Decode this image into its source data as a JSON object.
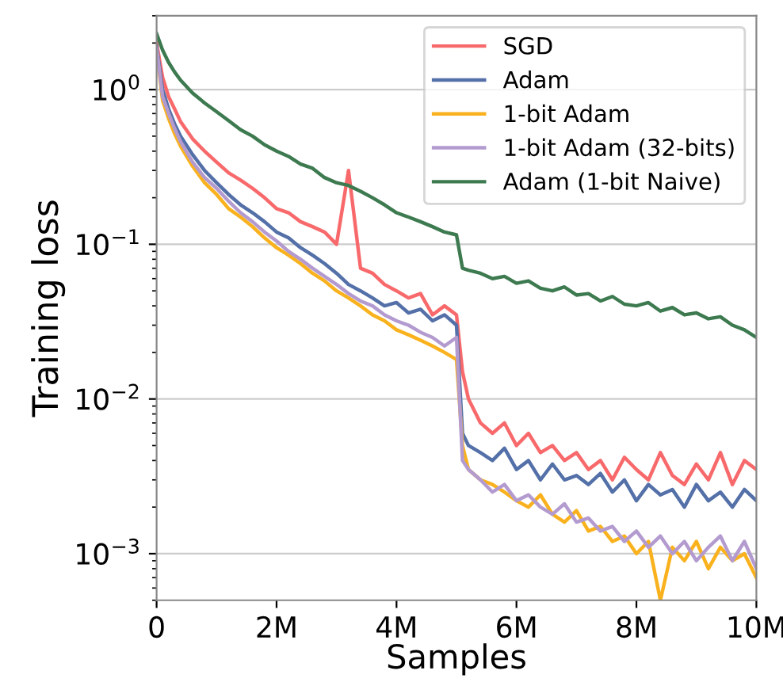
{
  "chart_data": {
    "type": "line",
    "xlabel": "Samples",
    "ylabel": "Training loss",
    "log": "y",
    "grid": "y",
    "legend": "top right",
    "marker": "none",
    "line_style": "solid",
    "x": [
      0,
      0.1,
      0.2,
      0.3,
      0.4,
      0.6,
      0.8,
      1.0,
      1.2,
      1.4,
      1.6,
      1.8,
      2.0,
      2.2,
      2.4,
      2.6,
      2.8,
      3.0,
      3.2,
      3.4,
      3.6,
      3.8,
      4.0,
      4.2,
      4.4,
      4.6,
      4.8,
      5.0,
      5.1,
      5.2,
      5.4,
      5.6,
      5.8,
      6.0,
      6.2,
      6.4,
      6.6,
      6.8,
      7.0,
      7.2,
      7.4,
      7.6,
      7.8,
      8.0,
      8.2,
      8.4,
      8.6,
      8.8,
      9.0,
      9.2,
      9.4,
      9.6,
      9.8,
      10.0
    ],
    "xlim": [
      0,
      10
    ],
    "xticks": [
      0,
      {
        "value": 2,
        "label": "2M"
      },
      {
        "value": 4,
        "label": "4M"
      },
      {
        "value": 6,
        "label": "6M"
      },
      {
        "value": 8,
        "label": "8M"
      },
      {
        "value": 10,
        "label": "10M"
      }
    ],
    "ylim": [
      0.0005,
      3
    ],
    "yticks": [
      {
        "value": 0.001,
        "label": "10$^{−3}$"
      },
      {
        "value": 0.01,
        "label": "10$^{−2}$"
      },
      {
        "value": 0.1,
        "label": "10$^{−1}$"
      },
      {
        "value": 1,
        "label": "10$^{0}$"
      }
    ],
    "series": [
      {
        "name": "SGD",
        "color": "#f8696b",
        "values": [
          2.0,
          1.2,
          0.9,
          0.75,
          0.62,
          0.48,
          0.4,
          0.34,
          0.29,
          0.26,
          0.23,
          0.2,
          0.17,
          0.16,
          0.14,
          0.13,
          0.12,
          0.1,
          0.3,
          0.07,
          0.065,
          0.055,
          0.05,
          0.045,
          0.048,
          0.035,
          0.04,
          0.035,
          0.015,
          0.01,
          0.007,
          0.006,
          0.007,
          0.005,
          0.006,
          0.0045,
          0.005,
          0.004,
          0.0045,
          0.0035,
          0.004,
          0.003,
          0.0042,
          0.0035,
          0.003,
          0.0045,
          0.0032,
          0.0028,
          0.0038,
          0.003,
          0.0045,
          0.0028,
          0.004,
          0.0035
        ]
      },
      {
        "name": "Adam",
        "color": "#5470a8",
        "values": [
          1.9,
          1.0,
          0.75,
          0.6,
          0.5,
          0.38,
          0.3,
          0.25,
          0.21,
          0.18,
          0.16,
          0.14,
          0.12,
          0.11,
          0.095,
          0.085,
          0.075,
          0.065,
          0.055,
          0.05,
          0.045,
          0.04,
          0.042,
          0.036,
          0.038,
          0.032,
          0.035,
          0.03,
          0.006,
          0.005,
          0.0045,
          0.004,
          0.0048,
          0.0035,
          0.004,
          0.003,
          0.0038,
          0.003,
          0.0032,
          0.0028,
          0.0033,
          0.0025,
          0.003,
          0.0022,
          0.0028,
          0.0024,
          0.0026,
          0.002,
          0.0028,
          0.0022,
          0.0025,
          0.002,
          0.0026,
          0.0022
        ]
      },
      {
        "name": "1-bit Adam",
        "color": "#f9b21e",
        "values": [
          1.8,
          0.85,
          0.65,
          0.52,
          0.43,
          0.32,
          0.25,
          0.21,
          0.17,
          0.15,
          0.13,
          0.11,
          0.095,
          0.085,
          0.075,
          0.065,
          0.058,
          0.05,
          0.045,
          0.04,
          0.035,
          0.032,
          0.028,
          0.026,
          0.024,
          0.022,
          0.02,
          0.018,
          0.005,
          0.0035,
          0.003,
          0.0028,
          0.0025,
          0.0022,
          0.002,
          0.0024,
          0.0018,
          0.0016,
          0.0019,
          0.0014,
          0.0015,
          0.0012,
          0.0013,
          0.001,
          0.0012,
          0.0005,
          0.0011,
          0.0009,
          0.0012,
          0.0008,
          0.0011,
          0.0009,
          0.001,
          0.0007
        ]
      },
      {
        "name": "1-bit Adam (32-bits)",
        "color": "#b39bd0",
        "values": [
          1.85,
          0.9,
          0.7,
          0.56,
          0.46,
          0.34,
          0.27,
          0.23,
          0.19,
          0.16,
          0.14,
          0.12,
          0.105,
          0.09,
          0.08,
          0.07,
          0.062,
          0.055,
          0.048,
          0.043,
          0.04,
          0.035,
          0.032,
          0.03,
          0.027,
          0.025,
          0.022,
          0.025,
          0.004,
          0.0035,
          0.003,
          0.0025,
          0.0028,
          0.0022,
          0.0024,
          0.002,
          0.0018,
          0.0021,
          0.0016,
          0.0017,
          0.0014,
          0.0015,
          0.0012,
          0.0014,
          0.0011,
          0.0013,
          0.001,
          0.0012,
          0.0009,
          0.0011,
          0.0013,
          0.0009,
          0.0012,
          0.0008
        ]
      },
      {
        "name": "Adam (1-bit Naive)",
        "color": "#3d7a50",
        "values": [
          2.3,
          1.8,
          1.5,
          1.3,
          1.15,
          0.95,
          0.82,
          0.72,
          0.63,
          0.55,
          0.5,
          0.44,
          0.4,
          0.37,
          0.33,
          0.31,
          0.27,
          0.25,
          0.24,
          0.22,
          0.2,
          0.18,
          0.16,
          0.15,
          0.14,
          0.13,
          0.12,
          0.115,
          0.07,
          0.068,
          0.065,
          0.06,
          0.062,
          0.056,
          0.058,
          0.052,
          0.05,
          0.053,
          0.047,
          0.048,
          0.043,
          0.046,
          0.041,
          0.04,
          0.042,
          0.037,
          0.039,
          0.035,
          0.036,
          0.033,
          0.034,
          0.03,
          0.028,
          0.025
        ]
      }
    ]
  }
}
